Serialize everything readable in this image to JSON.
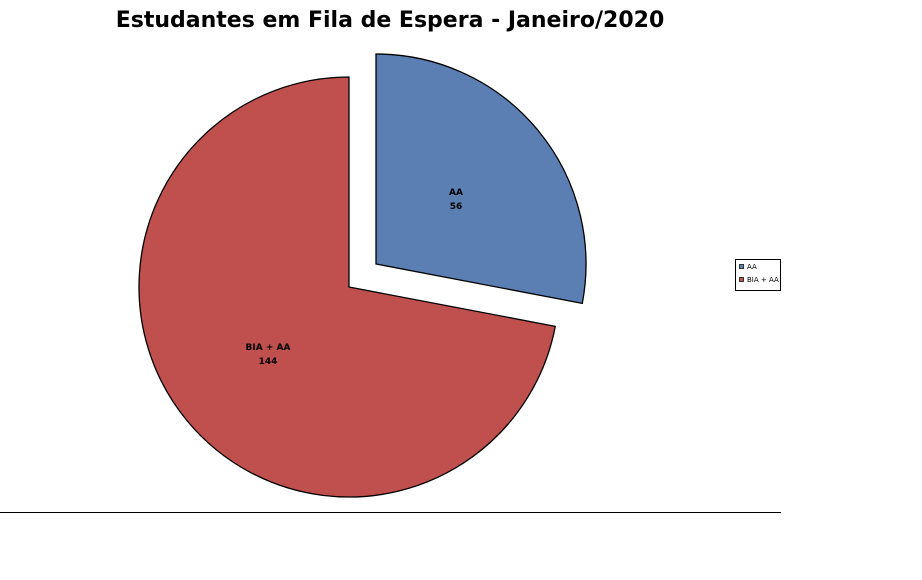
{
  "chart_data": {
    "type": "pie",
    "title": "Estudantes em Fila de Espera - Janeiro/2020",
    "slices": [
      {
        "label": "AA",
        "value": 56,
        "color": "#5b7fb3",
        "exploded": true
      },
      {
        "label": "BIA + AA",
        "value": 144,
        "color": "#c0504d",
        "exploded": false
      }
    ],
    "legend": {
      "placement": "right",
      "entries": [
        "AA",
        "BIA + AA"
      ]
    }
  }
}
